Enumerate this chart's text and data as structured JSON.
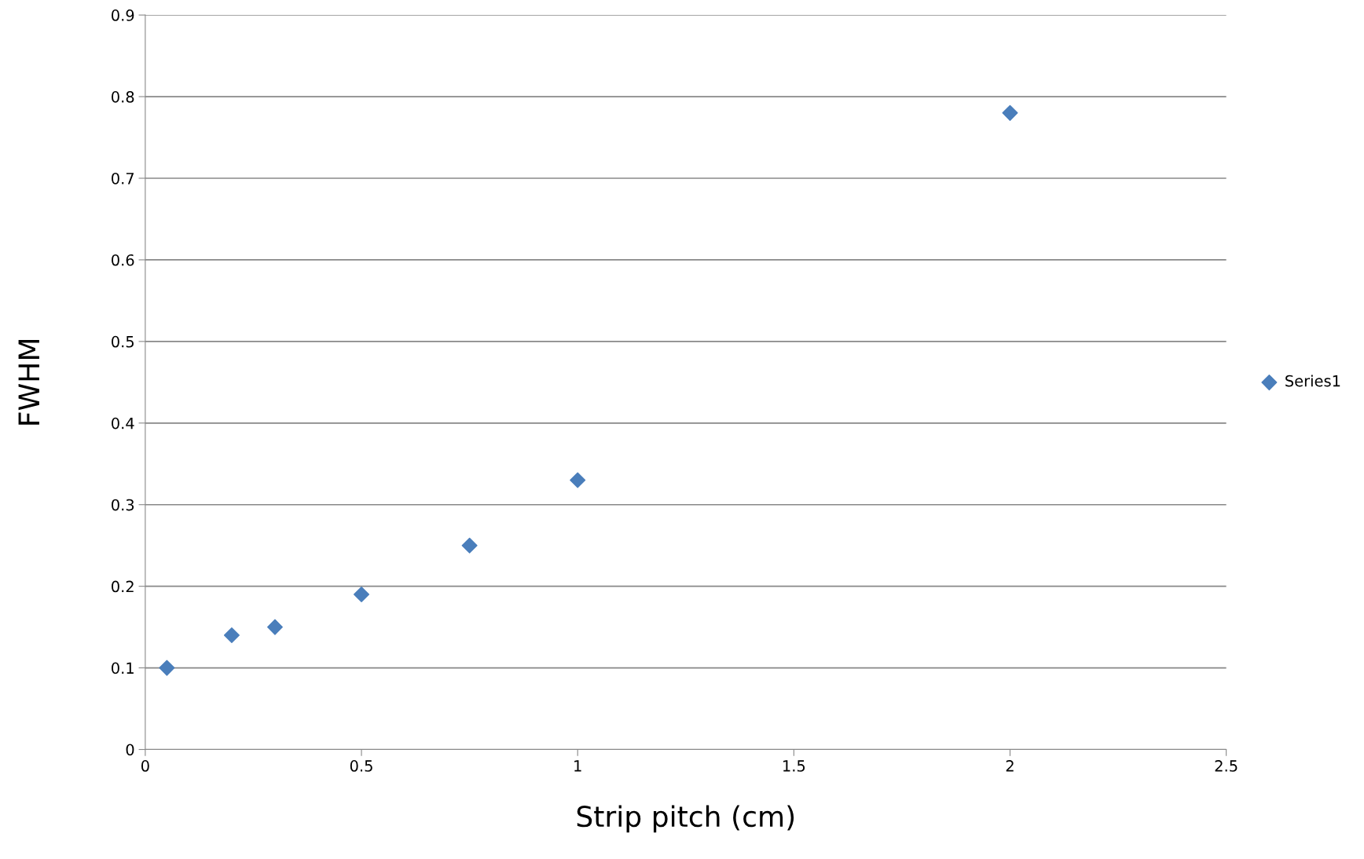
{
  "chart_data": {
    "type": "scatter",
    "xlabel": "Strip pitch (cm)",
    "ylabel": "FWHM",
    "x": [
      0.05,
      0.2,
      0.3,
      0.5,
      0.75,
      1,
      2
    ],
    "series": [
      {
        "name": "Series1",
        "color": "#4a7ebb",
        "values": [
          0.1,
          0.14,
          0.15,
          0.19,
          0.25,
          0.33,
          0.78
        ]
      }
    ],
    "xlim": [
      0,
      2.5
    ],
    "xticks": [
      0,
      0.5,
      1,
      1.5,
      2,
      2.5
    ],
    "ylim": [
      0,
      0.9
    ],
    "yticks": [
      0,
      0.1,
      0.2,
      0.3,
      0.4,
      0.5,
      0.6,
      0.7,
      0.8,
      0.9
    ],
    "grid": "y",
    "legend": "right",
    "marker": "diamond"
  }
}
